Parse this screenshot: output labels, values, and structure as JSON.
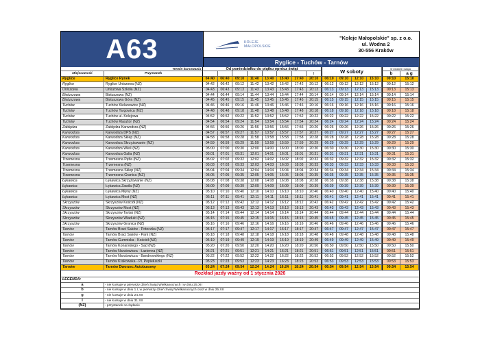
{
  "header": {
    "line_number": "A63",
    "logo_text": [
      "KOLEJE",
      "MAŁOPOLSKIE"
    ],
    "company": [
      "\"Koleje Małopolskie\" sp. z o.o.",
      "ul. Wodna 2",
      "30-556 Kraków"
    ],
    "route_title": "Ryglice - Tuchów - Tarnów",
    "brand_color": "#2F4C86"
  },
  "columns": {
    "termin_label": "Termin kursowania",
    "town_label": "Miejscowość",
    "stop_label": "Przystanek",
    "weekday_label": "Od poniedziałku do piątku oprócz świąt",
    "weekday_marks": [
      "",
      "",
      "",
      "",
      "",
      "",
      "",
      "l"
    ],
    "saturday_label": "W soboty",
    "sunday_label": "W niedziele i święta",
    "sunday_marks": [
      "b",
      "a g"
    ]
  },
  "rows": [
    {
      "town": "Ryglice",
      "stop": "Ryglice Rynek",
      "times": [
        "04:40",
        "06:40",
        "09:10",
        "11:40",
        "13:40",
        "15:40",
        "17:40",
        "20:10",
        "06:10",
        "09:10",
        "12:10",
        "15:10",
        "09:10",
        "15:10"
      ]
    },
    {
      "town": "Ryglice",
      "stop": "Ryglice Uniszowa (NŻ)",
      "times": [
        "04:42",
        "06:42",
        "09:12",
        "11:42",
        "13:42",
        "15:42",
        "17:42",
        "20:12",
        "06:12",
        "09:12",
        "12:12",
        "15:12",
        "09:12",
        "15:12"
      ]
    },
    {
      "town": "Uniszowa",
      "stop": "Uniszowa Szkoła (NŻ)",
      "times": [
        "04:43",
        "06:43",
        "09:13",
        "11:43",
        "13:43",
        "15:43",
        "17:43",
        "20:13",
        "06:13",
        "09:13",
        "12:13",
        "15:13",
        "09:13",
        "15:13"
      ]
    },
    {
      "town": "Bistuszowa",
      "stop": "Bistuszowa (NŻ)",
      "times": [
        "04:44",
        "06:44",
        "09:14",
        "11:44",
        "13:44",
        "15:44",
        "17:44",
        "20:14",
        "06:14",
        "09:14",
        "12:14",
        "15:14",
        "09:14",
        "15:14"
      ]
    },
    {
      "town": "Bistuszowa",
      "stop": "Bistuszowa Góra (NŻ)",
      "times": [
        "04:45",
        "06:45",
        "09:15",
        "11:45",
        "13:45",
        "15:45",
        "17:45",
        "20:15",
        "06:15",
        "09:15",
        "12:15",
        "15:15",
        "09:15",
        "15:15"
      ]
    },
    {
      "town": "Tuchów",
      "stop": "Tuchów Kielanowice (NŻ)",
      "times": [
        "04:46",
        "06:46",
        "09:16",
        "11:46",
        "13:46",
        "15:46",
        "17:46",
        "20:16",
        "06:16",
        "09:16",
        "12:16",
        "15:16",
        "09:16",
        "15:16"
      ]
    },
    {
      "town": "Tuchów",
      "stop": "Tuchów Targowica (NŻ)",
      "times": [
        "04:48",
        "06:48",
        "09:18",
        "11:48",
        "13:48",
        "15:48",
        "17:48",
        "20:18",
        "06:18",
        "09:18",
        "12:18",
        "15:18",
        "09:18",
        "15:18"
      ]
    },
    {
      "town": "Tuchów",
      "stop": "Tuchów ul. Kolejowa",
      "times": [
        "04:52",
        "06:52",
        "09:22",
        "11:52",
        "13:52",
        "15:52",
        "17:52",
        "20:22",
        "06:22",
        "09:22",
        "12:22",
        "15:22",
        "09:22",
        "15:22"
      ]
    },
    {
      "town": "Tuchów",
      "stop": "Tuchów Klasztor (NŻ)",
      "times": [
        "04:54",
        "06:54",
        "09:24",
        "11:54",
        "13:54",
        "15:54",
        "17:54",
        "20:24",
        "06:24",
        "09:24",
        "12:24",
        "15:24",
        "09:24",
        "15:24"
      ]
    },
    {
      "town": "Zabłędza",
      "stop": "Zabłędza Karwodrza (NŻ)",
      "times": [
        "04:56",
        "06:56",
        "09:26",
        "11:56",
        "13:56",
        "15:56",
        "17:56",
        "20:26",
        "06:26",
        "09:26",
        "12:26",
        "15:26",
        "09:26",
        "15:26"
      ]
    },
    {
      "town": "Karwodrza",
      "stop": "Karwodrza DPS (NŻ)",
      "times": [
        "04:57",
        "06:57",
        "09:27",
        "11:57",
        "13:57",
        "15:57",
        "17:57",
        "20:27",
        "06:27",
        "09:27",
        "12:27",
        "15:27",
        "09:27",
        "15:27"
      ]
    },
    {
      "town": "Karwodrza",
      "stop": "Karwodrza Sklep (NŻ)",
      "times": [
        "04:58",
        "06:58",
        "09:28",
        "11:58",
        "13:58",
        "15:58",
        "17:58",
        "20:28",
        "06:28",
        "09:28",
        "12:28",
        "15:28",
        "09:28",
        "15:28"
      ]
    },
    {
      "town": "Karwodrza",
      "stop": "Karwodrza Skrzyżowanie (NŻ)",
      "times": [
        "04:59",
        "06:59",
        "09:29",
        "11:59",
        "13:59",
        "15:59",
        "17:59",
        "20:29",
        "06:29",
        "09:29",
        "12:29",
        "15:29",
        "09:29",
        "15:29"
      ]
    },
    {
      "town": "Karwodrza",
      "stop": "Karwodrza Wieś (NŻ)",
      "times": [
        "05:00",
        "07:00",
        "09:30",
        "12:00",
        "14:00",
        "16:00",
        "18:00",
        "20:30",
        "06:30",
        "09:30",
        "12:30",
        "15:30",
        "09:30",
        "15:30"
      ]
    },
    {
      "town": "Karwodrza",
      "stop": "Karwodrza Galia (NŻ)",
      "times": [
        "05:01",
        "07:01",
        "09:31",
        "12:01",
        "14:01",
        "16:01",
        "18:01",
        "20:31",
        "06:31",
        "09:31",
        "12:31",
        "15:31",
        "09:31",
        "15:31"
      ]
    },
    {
      "town": "Trzemesna",
      "stop": "Trzemesna Pętla (NŻ)",
      "times": [
        "05:02",
        "07:02",
        "09:32",
        "12:02",
        "14:02",
        "16:02",
        "18:02",
        "20:32",
        "06:32",
        "09:32",
        "12:32",
        "15:32",
        "09:32",
        "15:32"
      ]
    },
    {
      "town": "Trzemesna",
      "stop": "Trzemesna (NŻ)",
      "times": [
        "05:03",
        "07:03",
        "09:33",
        "12:03",
        "14:03",
        "16:03",
        "18:03",
        "20:33",
        "06:33",
        "09:33",
        "12:33",
        "15:33",
        "09:33",
        "15:33"
      ]
    },
    {
      "town": "Trzemesna",
      "stop": "Trzemesna Sklep (NŻ)",
      "times": [
        "05:04",
        "07:04",
        "09:34",
        "12:04",
        "14:04",
        "16:04",
        "18:04",
        "20:34",
        "06:34",
        "09:34",
        "12:34",
        "15:34",
        "09:34",
        "15:34"
      ]
    },
    {
      "town": "Trzemesna",
      "stop": "Trzemesna Granica (NŻ)",
      "times": [
        "05:05",
        "07:05",
        "09:35",
        "12:05",
        "14:05",
        "16:05",
        "18:05",
        "20:35",
        "06:35",
        "09:35",
        "12:35",
        "15:35",
        "09:35",
        "15:35"
      ]
    },
    {
      "town": "Łękawica",
      "stop": "Łękawica Skrzyżowanie (NŻ)",
      "times": [
        "05:08",
        "07:08",
        "09:38",
        "12:08",
        "14:08",
        "16:08",
        "18:08",
        "20:38",
        "06:38",
        "09:38",
        "12:38",
        "15:38",
        "09:38",
        "15:38"
      ]
    },
    {
      "town": "Łękawica",
      "stop": "Łękawica Zawila (NŻ)",
      "times": [
        "05:09",
        "07:09",
        "09:39",
        "12:09",
        "14:09",
        "16:09",
        "18:09",
        "20:39",
        "06:39",
        "09:39",
        "12:39",
        "15:39",
        "09:39",
        "15:39"
      ]
    },
    {
      "town": "Łękawica",
      "stop": "Łękawica Młyny (NŻ)",
      "times": [
        "05:10",
        "07:10",
        "09:40",
        "12:10",
        "14:10",
        "16:10",
        "18:10",
        "20:40",
        "06:40",
        "09:40",
        "12:40",
        "15:40",
        "09:40",
        "15:40"
      ]
    },
    {
      "town": "Łękawica",
      "stop": "Łękawica Most (NŻ)",
      "times": [
        "05:11",
        "07:11",
        "09:41",
        "12:11",
        "14:11",
        "16:11",
        "18:11",
        "20:41",
        "06:41",
        "09:41",
        "12:41",
        "15:41",
        "09:41",
        "15:41"
      ]
    },
    {
      "town": "Skrzyszów",
      "stop": "Skrzyszów Kościół (NŻ)",
      "times": [
        "05:12",
        "07:12",
        "09:42",
        "12:12",
        "14:12",
        "16:12",
        "18:12",
        "20:42",
        "06:42",
        "09:42",
        "12:42",
        "15:42",
        "09:42",
        "15:42"
      ]
    },
    {
      "town": "Skrzyszów",
      "stop": "Skrzyszów Most (NŻ)",
      "times": [
        "05:13",
        "07:13",
        "09:43",
        "12:13",
        "14:13",
        "16:13",
        "18:13",
        "20:43",
        "06:43",
        "09:43",
        "12:43",
        "15:43",
        "09:43",
        "15:43"
      ]
    },
    {
      "town": "Skrzyszów",
      "stop": "Skrzyszów Tartak (NŻ)",
      "times": [
        "05:14",
        "07:14",
        "09:44",
        "12:14",
        "14:14",
        "16:14",
        "18:14",
        "20:44",
        "06:44",
        "09:44",
        "12:44",
        "15:44",
        "09:44",
        "15:44"
      ]
    },
    {
      "town": "Skrzyszów",
      "stop": "Skrzyszów Wiadukt (NŻ)",
      "times": [
        "05:15",
        "07:15",
        "09:45",
        "12:15",
        "14:15",
        "16:15",
        "18:15",
        "20:45",
        "06:45",
        "09:45",
        "12:45",
        "15:45",
        "09:45",
        "15:45"
      ]
    },
    {
      "town": "Skrzyszów",
      "stop": "Skrzyszów Granica (NŻ)",
      "times": [
        "05:16",
        "07:16",
        "09:46",
        "12:16",
        "14:16",
        "16:16",
        "18:16",
        "20:46",
        "06:46",
        "09:46",
        "12:46",
        "15:46",
        "09:46",
        "15:46"
      ]
    },
    {
      "town": "Tarnów",
      "stop": "Tarnów Braci Saków - Potoczka (NŻ)",
      "times": [
        "05:17",
        "07:17",
        "09:47",
        "12:17",
        "14:17",
        "16:17",
        "18:17",
        "20:47",
        "06:47",
        "09:47",
        "12:47",
        "15:47",
        "09:47",
        "15:47"
      ]
    },
    {
      "town": "Tarnów",
      "stop": "Tarnów Braci Saków - Park (NŻ)",
      "times": [
        "05:18",
        "07:18",
        "09:48",
        "12:18",
        "14:18",
        "16:18",
        "18:18",
        "20:48",
        "06:48",
        "09:48",
        "12:48",
        "15:48",
        "09:48",
        "15:48"
      ]
    },
    {
      "town": "Tarnów",
      "stop": "Tarnów Gumniska - Kościół (NŻ)",
      "times": [
        "05:19",
        "07:19",
        "09:49",
        "12:19",
        "14:19",
        "16:19",
        "18:19",
        "20:49",
        "06:49",
        "09:49",
        "12:49",
        "15:49",
        "09:49",
        "15:49"
      ]
    },
    {
      "town": "Tarnów",
      "stop": "Tarnów Konarskiego - Sąd (NŻ)",
      "times": [
        "05:20",
        "07:20",
        "09:50",
        "12:20",
        "14:20",
        "16:20",
        "18:20",
        "20:50",
        "06:50",
        "09:50",
        "12:50",
        "15:50",
        "09:50",
        "15:50"
      ]
    },
    {
      "town": "Tarnów",
      "stop": "Tarnów Narutowicza - Łazienna (NŻ)",
      "times": [
        "05:21",
        "07:21",
        "09:51",
        "12:21",
        "14:21",
        "16:21",
        "18:21",
        "20:51",
        "06:51",
        "09:51",
        "12:51",
        "15:51",
        "09:51",
        "15:51"
      ]
    },
    {
      "town": "Tarnów",
      "stop": "Tarnów Narutowicza - Bandrowskiego (NŻ)",
      "times": [
        "05:22",
        "07:22",
        "09:52",
        "12:22",
        "14:22",
        "16:22",
        "18:22",
        "20:52",
        "06:52",
        "09:52",
        "12:52",
        "15:52",
        "09:52",
        "15:52"
      ]
    },
    {
      "town": "Tarnów",
      "stop": "Tarnów Krakowska - Pl. Popiełuszki",
      "times": [
        "05:23",
        "07:23",
        "09:53",
        "12:23",
        "14:23",
        "16:23",
        "18:23",
        "20:53",
        "06:53",
        "09:53",
        "12:53",
        "15:53",
        "09:53",
        "15:53"
      ]
    },
    {
      "town": "Tarnów",
      "stop": "Tarnów Dworzec Autobusowy",
      "times": [
        "05:24",
        "07:24",
        "09:54",
        "12:24",
        "14:24",
        "16:24",
        "18:24",
        "20:54",
        "06:54",
        "09:54",
        "12:54",
        "15:54",
        "09:54",
        "15:54"
      ]
    }
  ],
  "validity": "Rozkład jazdy ważny od 1 stycznia 2026",
  "legend": {
    "title": "LEGENDA:",
    "items": [
      {
        "key": "a",
        "text": "- nie kursuje w pierwszy dzień Świąt Wielkanocnych i w dniu 25.XII"
      },
      {
        "key": "b",
        "text": "- nie kursuje w dniu 1.I, w pierwszy dzień Świąt Wielkanocnych oraz w dniu 25.XII"
      },
      {
        "key": "g",
        "text": "- nie kursuje w dniu 24.XII"
      },
      {
        "key": "l",
        "text": "- nie kursuje w dniu 31.XII"
      },
      {
        "key": "(NŻ)",
        "text": "- przystanek na żądanie"
      }
    ]
  },
  "colors": {
    "highlight_row": "#FFC000",
    "saturday": "#C5D9F1",
    "sunday": "#F8CBAD",
    "alt_row": "#D9D9D9",
    "validity_text": "#E0001B"
  }
}
